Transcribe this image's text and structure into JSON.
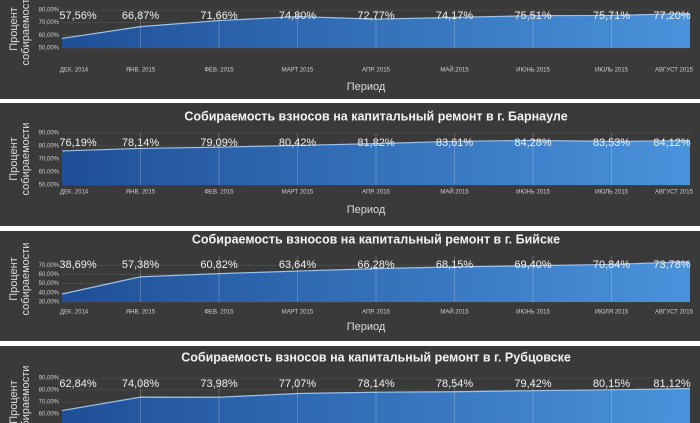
{
  "chart_data": [
    {
      "type": "area",
      "ylabel": [
        "Процент",
        "собираемости"
      ],
      "xlabel": "Период",
      "categories": [
        "ДЕК. 2014",
        "ЯНВ. 2015",
        "ФЕВ. 2015",
        "МАРТ 2015",
        "АПР. 2015",
        "МАЙ.2015",
        "ИЮНЬ 2015",
        "ИЮЛЬ 2015",
        "АВГУСТ 2015"
      ],
      "values": [
        57.56,
        66.87,
        71.66,
        74.8,
        72.77,
        74.17,
        75.51,
        75.71,
        77.2
      ],
      "value_labels": [
        "57,56%",
        "66,87%",
        "71,66%",
        "74,80%",
        "72,77%",
        "74,17%",
        "75,51%",
        "75,71%",
        "77,20%"
      ],
      "ylim": [
        50,
        80
      ],
      "yticks": [
        {
          "value": 50,
          "label": "50,00%"
        },
        {
          "value": 60,
          "label": "60,00%"
        },
        {
          "value": 70,
          "label": "70,00%"
        },
        {
          "value": 80,
          "label": "80,00%"
        }
      ],
      "grid": true,
      "color": "#2f6fc0"
    },
    {
      "type": "area",
      "title": "Собираемость взносов на капитальный ремонт в г. Барнауле",
      "ylabel": [
        "Процент",
        "собираемости"
      ],
      "xlabel": "Период",
      "categories": [
        "ДЕК. 2014",
        "ЯНВ. 2015",
        "ФЕВ. 2015",
        "МАРТ 2015",
        "АПР. 2015",
        "МАЙ.2015",
        "ИЮНЬ 2015",
        "ИЮЛЬ 2015",
        "АВГУСТ 2015"
      ],
      "values": [
        76.19,
        78.14,
        79.09,
        80.42,
        81.82,
        83.61,
        84.28,
        83.53,
        84.12
      ],
      "value_labels": [
        "76,19%",
        "78,14%",
        "79,09%",
        "80,42%",
        "81,82%",
        "83,61%",
        "84,28%",
        "83,53%",
        "84,12%"
      ],
      "ylim": [
        50,
        90
      ],
      "yticks": [
        {
          "value": 50,
          "label": "50,00%"
        },
        {
          "value": 60,
          "label": "60,00%"
        },
        {
          "value": 70,
          "label": "70,00%"
        },
        {
          "value": 80,
          "label": "80,00%"
        },
        {
          "value": 90,
          "label": "90,00%"
        }
      ],
      "grid": true,
      "color": "#2f6fc0"
    },
    {
      "type": "area",
      "title": "Собираемость взносов на капитальный ремонт в г. Бийске",
      "ylabel": [
        "Процент",
        "собираемости"
      ],
      "xlabel": "Период",
      "categories": [
        "ДЕК. 2014",
        "ЯНВ. 2015",
        "ФЕВ. 2015",
        "МАРТ 2015",
        "АПР. 2015",
        "МАЙ.2015",
        "ИЮНЬ 2015",
        "ИЮЛЯ 2015",
        "АВГУСТ 2015"
      ],
      "values": [
        38.69,
        57.38,
        60.82,
        63.64,
        66.28,
        68.15,
        69.4,
        70.84,
        73.78
      ],
      "value_labels": [
        "38,69%",
        "57,38%",
        "60,82%",
        "63,64%",
        "66,28%",
        "68,15%",
        "69,40%",
        "70,84%",
        "73,78%"
      ],
      "ylim": [
        30,
        80
      ],
      "yticks": [
        {
          "value": 30,
          "label": "30,00%"
        },
        {
          "value": 40,
          "label": "40,00%"
        },
        {
          "value": 50,
          "label": "50,00%"
        },
        {
          "value": 60,
          "label": "60,00%"
        },
        {
          "value": 70,
          "label": "70,00%"
        }
      ],
      "grid": true,
      "color": "#2f6fc0"
    },
    {
      "type": "area",
      "title": "Собираемость взносов на капитальный ремонт в г. Рубцовске",
      "ylabel": [
        "Процент",
        "собираемости"
      ],
      "values": [
        62.84,
        74.08,
        73.98,
        77.07,
        78.14,
        78.54,
        79.42,
        80.15,
        81.12
      ],
      "value_labels": [
        "62,84%",
        "74,08%",
        "73,98%",
        "77,07%",
        "78,14%",
        "78,54%",
        "79,42%",
        "80,15%",
        "81,12%"
      ],
      "ylim": [
        50,
        90
      ],
      "yticks": [
        {
          "value": 60,
          "label": "60,00%"
        },
        {
          "value": 70,
          "label": "70,00%"
        },
        {
          "value": 80,
          "label": "80,00%"
        },
        {
          "value": 90,
          "label": "90,00%"
        }
      ],
      "grid": true,
      "color": "#2f6fc0"
    }
  ]
}
